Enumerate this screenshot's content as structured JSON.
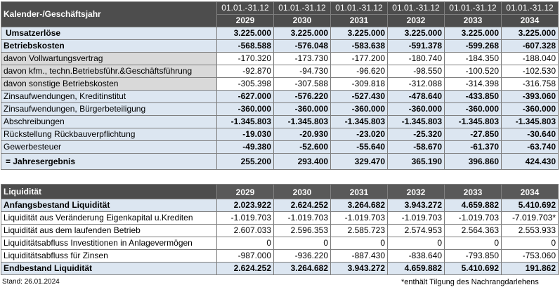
{
  "header": {
    "title": "Kalender-/Geschäftsjahr",
    "range_label": "01.01.-31.12",
    "years": [
      "2029",
      "2030",
      "2031",
      "2032",
      "2033",
      "2034"
    ]
  },
  "top_rows": [
    {
      "label": "Umsatzerlöse",
      "values": [
        "3.225.000",
        "3.225.000",
        "3.225.000",
        "3.225.000",
        "3.225.000",
        "3.225.000"
      ],
      "style": "blue bold",
      "indent": true
    },
    {
      "label": "Betriebskosten",
      "values": [
        "-568.588",
        "-576.048",
        "-583.638",
        "-591.378",
        "-599.268",
        "-607.328"
      ],
      "style": "blue bold"
    },
    {
      "label": "davon Vollwartungsvertrag",
      "values": [
        "-170.320",
        "-173.730",
        "-177.200",
        "-180.740",
        "-184.350",
        "-188.040"
      ],
      "style": "grey"
    },
    {
      "label": "davon kfm., techn.Betriebsführ.&Geschäftsführung",
      "values": [
        "-92.870",
        "-94.730",
        "-96.620",
        "-98.550",
        "-100.520",
        "-102.530"
      ],
      "style": "grey"
    },
    {
      "label": "davon sonstige Betriebskosten",
      "values": [
        "-305.398",
        "-307.588",
        "-309.818",
        "-312.088",
        "-314.398",
        "-316.758"
      ],
      "style": "grey"
    },
    {
      "label": "Zinsaufwendungen, Kreditinstitut",
      "values": [
        "-627.000",
        "-576.220",
        "-527.430",
        "-478.640",
        "-433.850",
        "-393.060"
      ],
      "style": "blue boldnum"
    },
    {
      "label": "Zinsaufwendungen, Bürgerbeteiligung",
      "values": [
        "-360.000",
        "-360.000",
        "-360.000",
        "-360.000",
        "-360.000",
        "-360.000"
      ],
      "style": "blue boldnum"
    },
    {
      "label": "Abschreibungen",
      "values": [
        "-1.345.803",
        "-1.345.803",
        "-1.345.803",
        "-1.345.803",
        "-1.345.803",
        "-1.345.803"
      ],
      "style": "blue boldnum"
    },
    {
      "label": "Rückstellung Rückbauverpflichtung",
      "values": [
        "-19.030",
        "-20.930",
        "-23.020",
        "-25.320",
        "-27.850",
        "-30.640"
      ],
      "style": "blue boldnum"
    },
    {
      "label": "Gewerbesteuer",
      "values": [
        "-49.380",
        "-52.600",
        "-55.640",
        "-58.670",
        "-61.370",
        "-63.740"
      ],
      "style": "blue boldnum"
    },
    {
      "label": "= Jahresergebnis",
      "values": [
        "255.200",
        "293.400",
        "329.470",
        "365.190",
        "396.860",
        "424.430"
      ],
      "style": "blue bold tall",
      "indent": true
    }
  ],
  "liquidity": {
    "title": "Liquidität",
    "years": [
      "2029",
      "2030",
      "2031",
      "2032",
      "2033",
      "2034"
    ],
    "rows": [
      {
        "label": "Anfangsbestand Liquidität",
        "values": [
          "2.023.922",
          "2.624.252",
          "3.264.682",
          "3.943.272",
          "4.659.882",
          "5.410.692"
        ],
        "style": "blue bold"
      },
      {
        "label": "Liquidität aus Veränderung Eigenkapital u.Krediten",
        "values": [
          "-1.019.703",
          "-1.019.703",
          "-1.019.703",
          "-1.019.703",
          "-1.019.703",
          "-7.019.703*"
        ],
        "style": "plain"
      },
      {
        "label": "Liquidität aus dem laufenden Betrieb",
        "values": [
          "2.607.033",
          "2.596.353",
          "2.585.723",
          "2.574.953",
          "2.564.363",
          "2.553.933"
        ],
        "style": "plain"
      },
      {
        "label": "Liquiditätsabfluss Investitionen in Anlagevermögen",
        "values": [
          "0",
          "0",
          "0",
          "0",
          "0",
          "0"
        ],
        "style": "plain"
      },
      {
        "label": "Liquiditätsabfluss für Zinsen",
        "values": [
          "-987.000",
          "-936.220",
          "-887.430",
          "-838.640",
          "-793.850",
          "-753.060"
        ],
        "style": "plain"
      },
      {
        "label": "Endbestand Liquidität",
        "values": [
          "2.624.252",
          "3.264.682",
          "3.943.272",
          "4.659.882",
          "5.410.692",
          "191.862"
        ],
        "style": "blue bold"
      }
    ]
  },
  "footer": {
    "stand": "Stand: 26.01.2024",
    "note": "*enthält Tilgung des Nachrangdarlehens"
  }
}
